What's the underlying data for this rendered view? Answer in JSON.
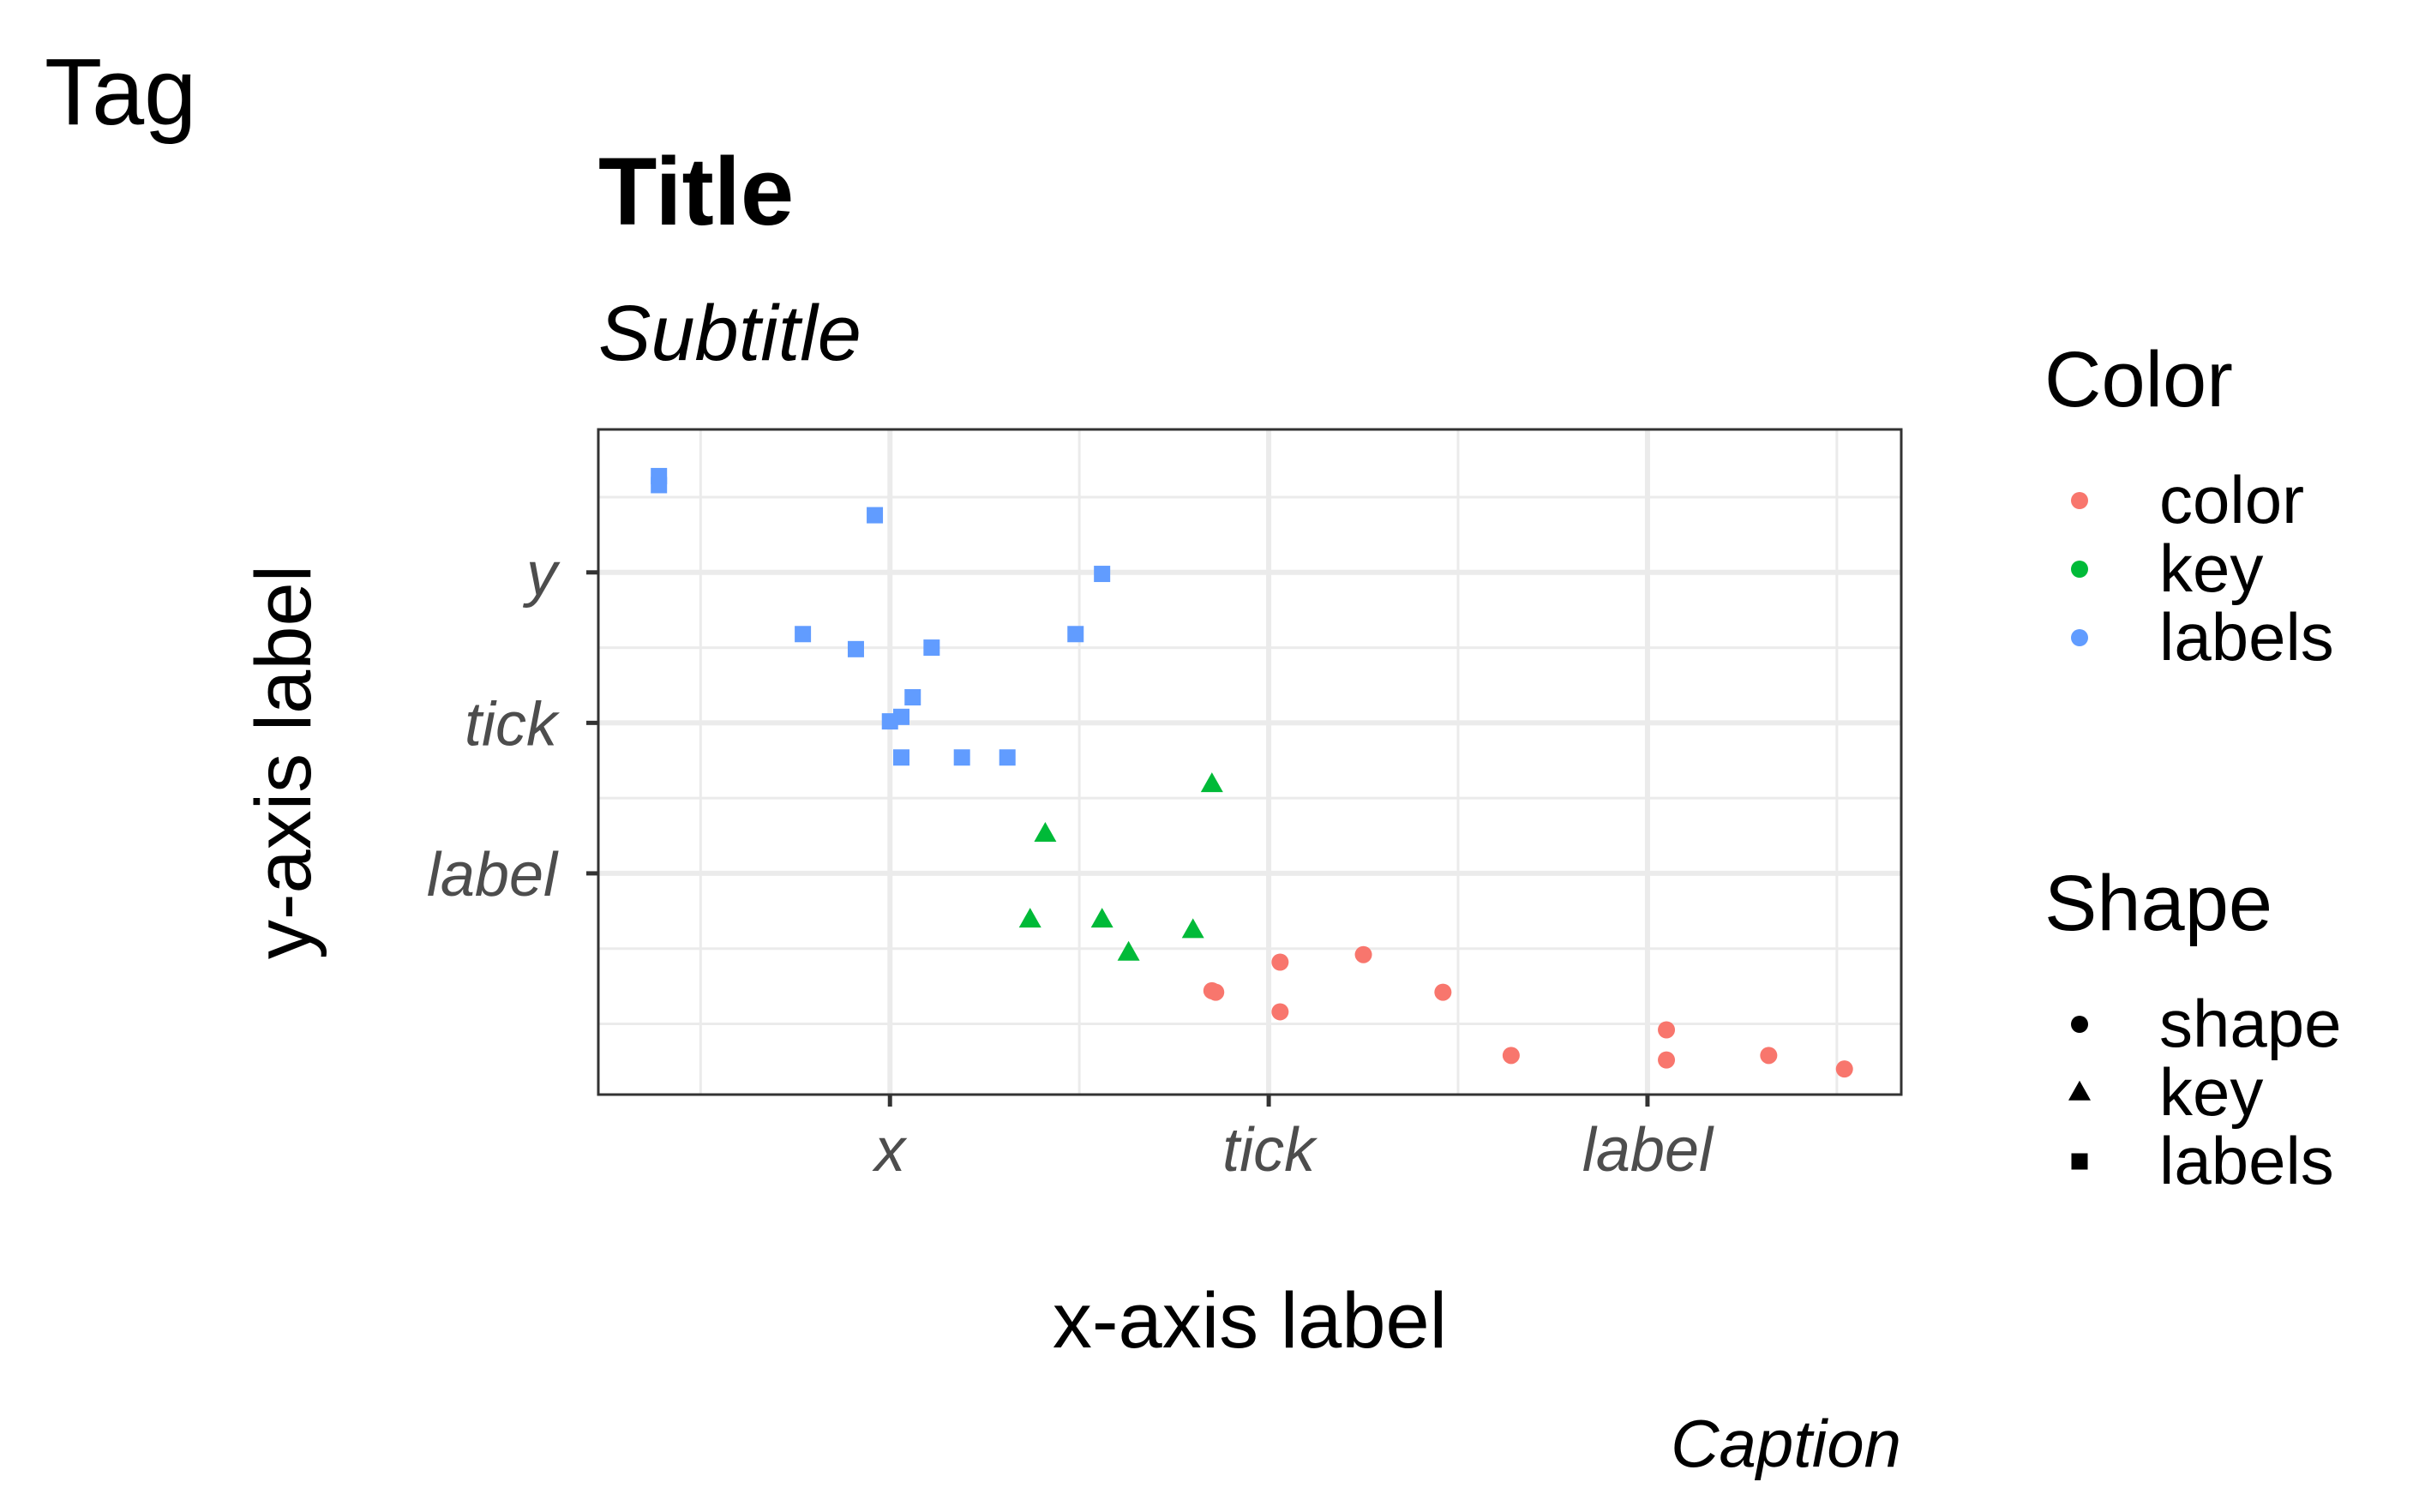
{
  "tag": "Tag",
  "title": "Title",
  "subtitle": "Subtitle",
  "caption": "Caption",
  "chart_data": {
    "type": "scatter",
    "xlabel": "x-axis label",
    "ylabel": "y-axis label",
    "xlim": [
      -0.77,
      2.67
    ],
    "ylim": [
      -1.47,
      2.95
    ],
    "x_ticks": [
      0,
      1,
      2
    ],
    "x_tick_labels": [
      "x",
      "tick",
      "label"
    ],
    "y_ticks": [
      0,
      1,
      2
    ],
    "y_tick_labels": [
      "label",
      "tick",
      "y"
    ],
    "grid": true,
    "legends": [
      {
        "title": "Color",
        "entries": [
          {
            "label": "color",
            "color": "#F8766D"
          },
          {
            "label": "key",
            "color": "#00BA38"
          },
          {
            "label": "labels",
            "color": "#619CFF"
          }
        ]
      },
      {
        "title": "Shape",
        "entries": [
          {
            "label": "shape",
            "shape": "circle"
          },
          {
            "label": "key",
            "shape": "triangle"
          },
          {
            "label": "labels",
            "shape": "square"
          }
        ]
      }
    ],
    "series": [
      {
        "name": "color",
        "color": "#F8766D",
        "shape": "circle",
        "points": [
          [
            0.85,
            -0.78
          ],
          [
            0.86,
            -0.79
          ],
          [
            1.03,
            -0.59
          ],
          [
            1.25,
            -0.54
          ],
          [
            1.46,
            -0.79
          ],
          [
            1.03,
            -0.92
          ],
          [
            1.64,
            -1.21
          ],
          [
            2.05,
            -1.04
          ],
          [
            2.05,
            -1.24
          ],
          [
            2.32,
            -1.21
          ],
          [
            2.52,
            -1.3
          ]
        ]
      },
      {
        "name": "key",
        "color": "#00BA38",
        "shape": "triangle",
        "points": [
          [
            0.85,
            0.59
          ],
          [
            0.41,
            0.26
          ],
          [
            0.37,
            -0.31
          ],
          [
            0.56,
            -0.31
          ],
          [
            0.63,
            -0.53
          ],
          [
            0.8,
            -0.38
          ]
        ]
      },
      {
        "name": "labels",
        "color": "#619CFF",
        "shape": "square",
        "points": [
          [
            -0.61,
            2.64
          ],
          [
            -0.61,
            2.58
          ],
          [
            -0.04,
            2.38
          ],
          [
            0.56,
            1.99
          ],
          [
            0.49,
            1.59
          ],
          [
            -0.23,
            1.59
          ],
          [
            -0.09,
            1.49
          ],
          [
            0.11,
            1.5
          ],
          [
            0.06,
            1.17
          ],
          [
            0.03,
            1.04
          ],
          [
            0.0,
            1.01
          ],
          [
            0.03,
            0.77
          ],
          [
            0.19,
            0.77
          ],
          [
            0.31,
            0.77
          ]
        ]
      }
    ]
  }
}
